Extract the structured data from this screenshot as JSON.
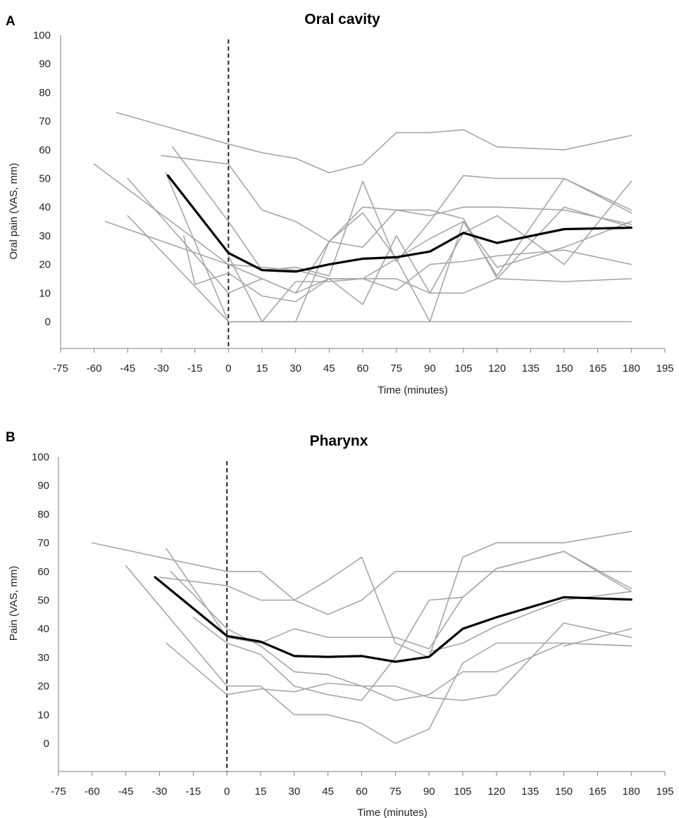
{
  "chart_data": [
    {
      "type": "line",
      "panel": "A",
      "title": "Oral cavity",
      "xlabel": "Time (minutes)",
      "ylabel": "Oral pain (VAS, mm)",
      "xlim": [
        -75,
        195
      ],
      "ylim": [
        0,
        100
      ],
      "x_ticks": [
        -75,
        -60,
        -45,
        -30,
        -15,
        0,
        15,
        30,
        45,
        60,
        75,
        90,
        105,
        120,
        135,
        150,
        165,
        180,
        195
      ],
      "y_ticks": [
        0,
        10,
        20,
        30,
        40,
        50,
        60,
        70,
        80,
        90,
        100
      ],
      "reference_line_x": 0,
      "colors": {
        "individual": "#a6a6a6",
        "mean": "#000000",
        "reference": "#262626"
      },
      "series": [
        {
          "role": "individual",
          "points": [
            [
              -50,
              73
            ],
            [
              0,
              62
            ],
            [
              15,
              59
            ],
            [
              30,
              57
            ],
            [
              45,
              52
            ],
            [
              60,
              55
            ],
            [
              75,
              66
            ],
            [
              90,
              66
            ],
            [
              105,
              67
            ],
            [
              120,
              61
            ],
            [
              150,
              60
            ],
            [
              180,
              65
            ]
          ]
        },
        {
          "role": "individual",
          "points": [
            [
              -30,
              58
            ],
            [
              0,
              55
            ],
            [
              15,
              39
            ],
            [
              30,
              35
            ],
            [
              45,
              28
            ],
            [
              60,
              26
            ],
            [
              75,
              39
            ],
            [
              90,
              39
            ],
            [
              105,
              36
            ],
            [
              120,
              15
            ],
            [
              150,
              14
            ],
            [
              180,
              15
            ]
          ]
        },
        {
          "role": "individual",
          "points": [
            [
              -25,
              61
            ],
            [
              0,
              35
            ],
            [
              15,
              18
            ],
            [
              30,
              19
            ],
            [
              45,
              16
            ],
            [
              60,
              49
            ],
            [
              75,
              21
            ],
            [
              90,
              35
            ],
            [
              105,
              51
            ],
            [
              120,
              50
            ],
            [
              150,
              50
            ],
            [
              180,
              38
            ]
          ]
        },
        {
          "role": "individual",
          "points": [
            [
              -60,
              55
            ],
            [
              0,
              20
            ],
            [
              15,
              15
            ],
            [
              30,
              10
            ],
            [
              45,
              28
            ],
            [
              60,
              40
            ],
            [
              75,
              39
            ],
            [
              90,
              37
            ],
            [
              105,
              40
            ],
            [
              120,
              40
            ],
            [
              150,
              39
            ],
            [
              180,
              34
            ]
          ]
        },
        {
          "role": "individual",
          "points": [
            [
              -45,
              50
            ],
            [
              0,
              10
            ],
            [
              15,
              15
            ],
            [
              30,
              10
            ],
            [
              45,
              15
            ],
            [
              60,
              15
            ],
            [
              75,
              15
            ],
            [
              90,
              10
            ],
            [
              105,
              10
            ],
            [
              120,
              15
            ],
            [
              150,
              40
            ],
            [
              180,
              33
            ]
          ]
        },
        {
          "role": "individual",
          "points": [
            [
              -55,
              35
            ],
            [
              0,
              20
            ],
            [
              15,
              19
            ],
            [
              30,
              18
            ],
            [
              45,
              15
            ],
            [
              60,
              15
            ],
            [
              75,
              11
            ],
            [
              90,
              20
            ],
            [
              105,
              21
            ],
            [
              120,
              23
            ],
            [
              150,
              25
            ],
            [
              180,
              20
            ]
          ]
        },
        {
          "role": "individual",
          "points": [
            [
              -45,
              37
            ],
            [
              0,
              0
            ],
            [
              15,
              0
            ],
            [
              30,
              0
            ],
            [
              45,
              0
            ],
            [
              60,
              0
            ],
            [
              75,
              0
            ],
            [
              90,
              0
            ],
            [
              105,
              0
            ],
            [
              120,
              0
            ],
            [
              150,
              0
            ],
            [
              180,
              0
            ]
          ]
        },
        {
          "role": "individual",
          "points": [
            [
              -28,
              52
            ],
            [
              0,
              0
            ],
            [
              15,
              0
            ],
            [
              30,
              14
            ],
            [
              45,
              14
            ],
            [
              60,
              15
            ],
            [
              75,
              22
            ],
            [
              90,
              29
            ],
            [
              105,
              35
            ],
            [
              120,
              16
            ],
            [
              150,
              50
            ],
            [
              180,
              39
            ]
          ]
        },
        {
          "role": "individual",
          "points": [
            [
              -20,
              30
            ],
            [
              -15,
              13
            ],
            [
              0,
              17
            ],
            [
              15,
              9
            ],
            [
              30,
              7
            ],
            [
              45,
              15
            ],
            [
              60,
              6
            ],
            [
              75,
              30
            ],
            [
              90,
              10
            ],
            [
              105,
              31
            ],
            [
              120,
              37
            ],
            [
              150,
              20
            ],
            [
              180,
              49
            ]
          ]
        },
        {
          "role": "individual",
          "points": [
            [
              0,
              23
            ],
            [
              15,
              0
            ],
            [
              30,
              0
            ],
            [
              45,
              28
            ],
            [
              60,
              38
            ],
            [
              75,
              22
            ],
            [
              90,
              0
            ],
            [
              105,
              35
            ],
            [
              120,
              19
            ],
            [
              150,
              26
            ],
            [
              180,
              35
            ]
          ]
        },
        {
          "role": "mean",
          "points": [
            [
              -27,
              51
            ],
            [
              0,
              24
            ],
            [
              15,
              18
            ],
            [
              30,
              17.5
            ],
            [
              45,
              20
            ],
            [
              60,
              22
            ],
            [
              75,
              22.5
            ],
            [
              90,
              24.5
            ],
            [
              105,
              31
            ],
            [
              120,
              27.5
            ],
            [
              150,
              32.3
            ],
            [
              180,
              32.8
            ]
          ]
        }
      ]
    },
    {
      "type": "line",
      "panel": "B",
      "title": "Pharynx",
      "xlabel": "Time (minutes)",
      "ylabel": "Pain (VAS, mm)",
      "xlim": [
        -75,
        195
      ],
      "ylim": [
        0,
        100
      ],
      "x_ticks": [
        -75,
        -60,
        -45,
        -30,
        -15,
        0,
        15,
        30,
        45,
        60,
        75,
        90,
        105,
        120,
        135,
        150,
        165,
        180,
        195
      ],
      "y_ticks": [
        0,
        10,
        20,
        30,
        40,
        50,
        60,
        70,
        80,
        90,
        100
      ],
      "reference_line_x": 0,
      "colors": {
        "individual": "#a6a6a6",
        "mean": "#000000",
        "reference": "#262626"
      },
      "series": [
        {
          "role": "individual",
          "points": [
            [
              -60,
              70
            ],
            [
              0,
              60
            ],
            [
              15,
              60
            ],
            [
              30,
              50
            ],
            [
              45,
              57
            ],
            [
              60,
              65
            ],
            [
              75,
              35
            ],
            [
              90,
              30
            ],
            [
              105,
              65
            ],
            [
              120,
              70
            ],
            [
              150,
              70
            ],
            [
              180,
              74
            ]
          ]
        },
        {
          "role": "individual",
          "points": [
            [
              -30,
              58
            ],
            [
              0,
              55
            ],
            [
              15,
              50
            ],
            [
              30,
              50
            ],
            [
              45,
              45
            ],
            [
              60,
              50
            ],
            [
              75,
              60
            ],
            [
              90,
              60
            ],
            [
              105,
              60
            ],
            [
              120,
              60
            ],
            [
              150,
              60
            ],
            [
              180,
              60
            ]
          ]
        },
        {
          "role": "individual",
          "points": [
            [
              -27,
              68
            ],
            [
              0,
              37
            ],
            [
              15,
              35
            ],
            [
              30,
              40
            ],
            [
              45,
              37
            ],
            [
              60,
              37
            ],
            [
              75,
              37
            ],
            [
              90,
              33
            ],
            [
              105,
              51
            ],
            [
              120,
              61
            ],
            [
              150,
              67
            ],
            [
              180,
              54
            ]
          ]
        },
        {
          "role": "individual",
          "points": [
            [
              -25,
              60
            ],
            [
              0,
              40
            ],
            [
              15,
              34
            ],
            [
              30,
              25
            ],
            [
              45,
              24
            ],
            [
              60,
              20
            ],
            [
              75,
              15
            ],
            [
              90,
              17
            ],
            [
              105,
              25
            ],
            [
              120,
              25
            ],
            [
              150,
              35
            ],
            [
              180,
              34
            ]
          ]
        },
        {
          "role": "individual",
          "points": [
            [
              -45,
              62
            ],
            [
              0,
              20
            ],
            [
              15,
              20
            ],
            [
              30,
              10
            ],
            [
              45,
              10
            ],
            [
              60,
              7
            ],
            [
              75,
              0
            ],
            [
              90,
              5
            ],
            [
              105,
              28
            ],
            [
              120,
              35
            ],
            [
              150,
              35
            ],
            [
              180,
              34
            ]
          ]
        },
        {
          "role": "individual",
          "points": [
            [
              -15,
              44
            ],
            [
              0,
              35
            ],
            [
              15,
              31
            ],
            [
              30,
              20
            ],
            [
              45,
              17
            ],
            [
              60,
              15
            ],
            [
              75,
              30
            ],
            [
              90,
              50
            ],
            [
              105,
              51
            ],
            [
              120,
              61
            ],
            [
              150,
              67
            ],
            [
              180,
              53
            ]
          ]
        },
        {
          "role": "individual",
          "points": [
            [
              -27,
              35
            ],
            [
              0,
              17
            ],
            [
              15,
              19
            ],
            [
              30,
              18
            ],
            [
              45,
              21
            ],
            [
              60,
              20
            ],
            [
              75,
              20
            ],
            [
              90,
              16
            ],
            [
              105,
              15
            ],
            [
              120,
              17
            ],
            [
              150,
              42
            ],
            [
              180,
              37
            ]
          ]
        },
        {
          "role": "individual",
          "points": [
            [
              90,
              32
            ],
            [
              105,
              35
            ],
            [
              120,
              41
            ],
            [
              150,
              50
            ],
            [
              180,
              53
            ]
          ]
        },
        {
          "role": "individual",
          "points": [
            [
              150,
              34
            ],
            [
              180,
              40
            ]
          ]
        },
        {
          "role": "mean",
          "points": [
            [
              -32,
              58
            ],
            [
              0,
              37.5
            ],
            [
              15,
              35.5
            ],
            [
              30,
              30.5
            ],
            [
              45,
              30.2
            ],
            [
              60,
              30.5
            ],
            [
              75,
              28.5
            ],
            [
              90,
              30.2
            ],
            [
              105,
              40
            ],
            [
              120,
              44
            ],
            [
              150,
              51
            ],
            [
              180,
              50.2
            ]
          ]
        }
      ]
    }
  ]
}
